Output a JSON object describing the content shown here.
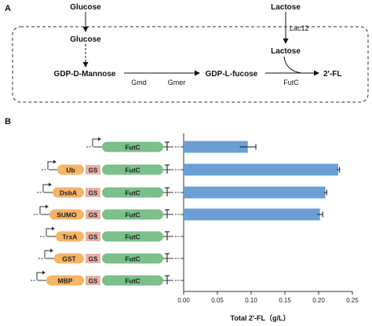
{
  "panel_a": {
    "label": "A",
    "glucose_outside": "Glucose",
    "glucose_inside": "Glucose",
    "lactose_outside": "Lactose",
    "lac12": "Lac12",
    "lactose_inside": "Lactose",
    "gdp_mannose": "GDP-D-Mannose",
    "gmd": "Gmd",
    "gmer": "Gmer",
    "gdp_fucose": "GDP-L-fucose",
    "futc": "FutC",
    "product": "2′-FL"
  },
  "panel_b": {
    "label": "B",
    "linker": "GS",
    "enzyme": "FutC",
    "rows": [
      {
        "tag": ""
      },
      {
        "tag": "Ub"
      },
      {
        "tag": "DsbA"
      },
      {
        "tag": "SUMO"
      },
      {
        "tag": "TrxA"
      },
      {
        "tag": "GST"
      },
      {
        "tag": "MBP"
      }
    ]
  },
  "chart_data": {
    "type": "bar",
    "orientation": "horizontal",
    "categories": [
      "FutC",
      "Ub-GS-FutC",
      "DsbA-GS-FutC",
      "SUMO-GS-FutC",
      "TrxA-GS-FutC",
      "GST-GS-FutC",
      "MBP-GS-FutC"
    ],
    "values": [
      0.095,
      0.229,
      0.21,
      0.202,
      0,
      0,
      0
    ],
    "errors": [
      0.012,
      0.002,
      0.002,
      0.004,
      0,
      0,
      0
    ],
    "xlabel": "Total 2′-FL（g/L）",
    "xlim": [
      0,
      0.25
    ],
    "xticks": [
      "0.00",
      "0.05",
      "0.10",
      "0.15",
      "0.20",
      "0.25"
    ],
    "bar_color": "#6a9fd4",
    "grid": false
  },
  "colors": {
    "tag": "#f5b466",
    "linker": "#e8b2a8",
    "enzyme": "#7bbf8a",
    "bar": "#6a9fd4"
  }
}
